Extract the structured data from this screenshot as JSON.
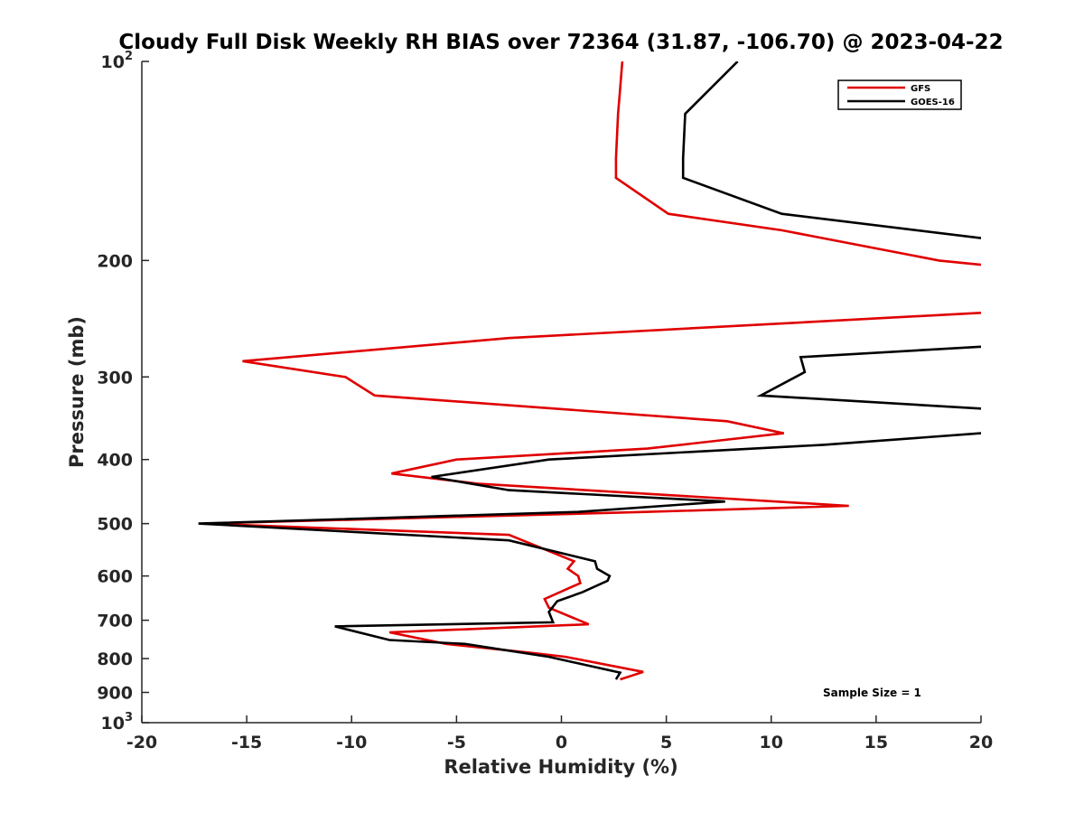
{
  "chart_data": {
    "type": "line",
    "title": "Cloudy Full Disk Weekly RH BIAS over 72364 (31.87, -106.70) @ 2023-04-22",
    "xlabel": "Relative Humidity (%)",
    "ylabel": "Pressure (mb)",
    "xlim": [
      -20,
      20
    ],
    "ylim": [
      100,
      1000
    ],
    "y_scale": "log",
    "y_reversed": true,
    "grid": false,
    "legend_position": "top-right",
    "x_ticks": [
      "-20",
      "-15",
      "-10",
      "-5",
      "0",
      "5",
      "10",
      "15",
      "20"
    ],
    "y_ticks": [
      {
        "value": 100,
        "label": "10",
        "sup": "2"
      },
      {
        "value": 200,
        "label": "200",
        "sup": ""
      },
      {
        "value": 300,
        "label": "300",
        "sup": ""
      },
      {
        "value": 400,
        "label": "400",
        "sup": ""
      },
      {
        "value": 500,
        "label": "500",
        "sup": ""
      },
      {
        "value": 600,
        "label": "600",
        "sup": ""
      },
      {
        "value": 700,
        "label": "700",
        "sup": ""
      },
      {
        "value": 800,
        "label": "800",
        "sup": ""
      },
      {
        "value": 900,
        "label": "900",
        "sup": ""
      },
      {
        "value": 1000,
        "label": "10",
        "sup": "3"
      }
    ],
    "annotation": "Sample Size = 1",
    "series": [
      {
        "name": "GFS",
        "color": "#e00000",
        "points": [
          [
            2.9,
            100
          ],
          [
            2.8,
            110
          ],
          [
            2.7,
            120
          ],
          [
            2.65,
            130
          ],
          [
            2.6,
            140
          ],
          [
            2.6,
            150
          ],
          [
            5.1,
            170
          ],
          [
            10.5,
            180
          ],
          [
            18.0,
            200
          ],
          [
            20,
            203
          ],
          [
            null,
            null
          ],
          [
            20,
            240
          ],
          [
            -2.5,
            262
          ],
          [
            -15.2,
            284
          ],
          [
            -10.3,
            300
          ],
          [
            -8.9,
            320
          ],
          [
            7.9,
            350
          ],
          [
            10.6,
            365
          ],
          [
            4.1,
            385
          ],
          [
            -5.0,
            400
          ],
          [
            -8.1,
            420
          ],
          [
            -4.0,
            435
          ],
          [
            13.7,
            470
          ],
          [
            4.0,
            480
          ],
          [
            -17.0,
            500
          ],
          [
            -2.5,
            520
          ],
          [
            0.6,
            570
          ],
          [
            0.3,
            585
          ],
          [
            0.8,
            600
          ],
          [
            0.9,
            615
          ],
          [
            -0.8,
            650
          ],
          [
            -0.6,
            670
          ],
          [
            1.3,
            710
          ],
          [
            -8.2,
            730
          ],
          [
            -5.5,
            760
          ],
          [
            -1.3,
            785
          ],
          [
            0.2,
            795
          ],
          [
            3.9,
            838
          ],
          [
            2.8,
            860
          ]
        ]
      },
      {
        "name": "GOES-16",
        "color": "#000000",
        "points": [
          [
            8.4,
            100
          ],
          [
            5.9,
            120
          ],
          [
            5.8,
            140
          ],
          [
            5.8,
            150
          ],
          [
            10.5,
            170
          ],
          [
            20,
            185
          ],
          [
            null,
            null
          ],
          [
            20,
            270
          ],
          [
            11.4,
            280
          ],
          [
            11.6,
            295
          ],
          [
            9.5,
            320
          ],
          [
            20,
            335
          ],
          [
            null,
            null
          ],
          [
            20,
            365
          ],
          [
            12.5,
            380
          ],
          [
            -0.6,
            400
          ],
          [
            -6.2,
            425
          ],
          [
            -2.5,
            445
          ],
          [
            7.8,
            463
          ],
          [
            0.8,
            480
          ],
          [
            -17.3,
            500
          ],
          [
            -2.5,
            530
          ],
          [
            1.6,
            570
          ],
          [
            1.7,
            585
          ],
          [
            2.3,
            600
          ],
          [
            2.2,
            610
          ],
          [
            1.0,
            635
          ],
          [
            -0.2,
            655
          ],
          [
            -0.6,
            680
          ],
          [
            -0.4,
            705
          ],
          [
            -10.8,
            715
          ],
          [
            -8.2,
            750
          ],
          [
            -4.6,
            760
          ],
          [
            -0.6,
            795
          ],
          [
            2.8,
            840
          ],
          [
            2.6,
            860
          ]
        ]
      }
    ]
  }
}
